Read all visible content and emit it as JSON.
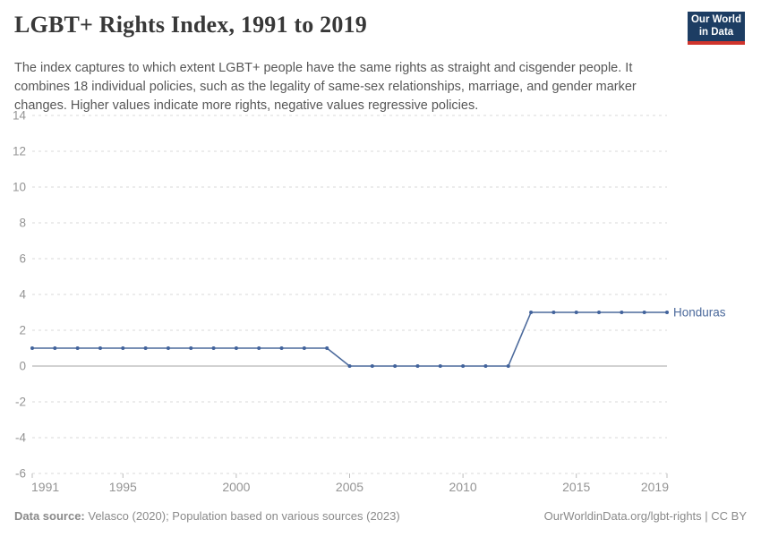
{
  "header": {
    "title": "LGBT+ Rights Index, 1991 to 2019",
    "subtitle": "The index captures to which extent LGBT+ people have the same rights as straight and cisgender people. It combines 18 individual policies, such as the legality of same-sex relationships, marriage, and gender marker changes. Higher values indicate more rights, negative values regressive policies.",
    "logo": {
      "line1": "Our World",
      "line2": "in Data",
      "bg_color": "#1d3d63",
      "accent_color": "#d0342c"
    }
  },
  "chart_data": {
    "type": "line",
    "title": "LGBT+ Rights Index, 1991 to 2019",
    "x": [
      1991,
      1992,
      1993,
      1994,
      1995,
      1996,
      1997,
      1998,
      1999,
      2000,
      2001,
      2002,
      2003,
      2004,
      2005,
      2006,
      2007,
      2008,
      2009,
      2010,
      2011,
      2012,
      2013,
      2014,
      2015,
      2016,
      2017,
      2018,
      2019
    ],
    "series": [
      {
        "name": "Honduras",
        "color": "#4c6a9c",
        "values": [
          1,
          1,
          1,
          1,
          1,
          1,
          1,
          1,
          1,
          1,
          1,
          1,
          1,
          1,
          0,
          0,
          0,
          0,
          0,
          0,
          0,
          0,
          3,
          3,
          3,
          3,
          3,
          3,
          3
        ]
      }
    ],
    "xlabel": "",
    "ylabel": "",
    "xlim": [
      1991,
      2019
    ],
    "ylim": [
      -6,
      14
    ],
    "y_ticks": [
      -6,
      -4,
      -2,
      0,
      2,
      4,
      6,
      8,
      10,
      12,
      14
    ],
    "x_ticks": [
      1991,
      1995,
      2000,
      2005,
      2010,
      2015,
      2019
    ],
    "grid": "horizontal dashed, solid zero line",
    "legend": "series name labeled at right end of line"
  },
  "colors": {
    "line": "#4c6a9c",
    "point": "#42639c",
    "grid": "#dadada",
    "zero_line": "#a6a6a6",
    "axis_text": "#949494",
    "tick_mark": "#bdbdbd"
  },
  "footer": {
    "source_label": "Data source:",
    "source_text": " Velasco (2020); Population based on various sources (2023)",
    "credit": "OurWorldinData.org/lgbt-rights | CC BY"
  }
}
